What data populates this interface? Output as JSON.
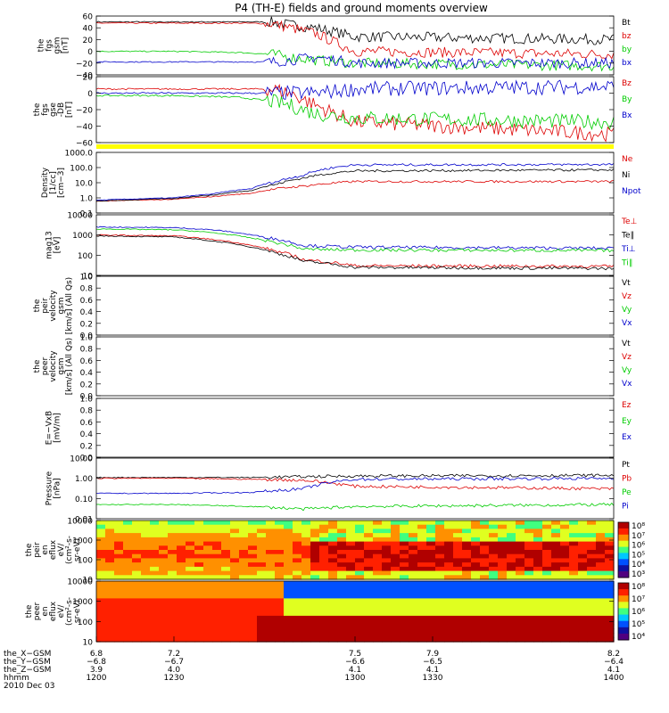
{
  "title": "P4 (TH-E) fields and ground moments overview",
  "colors": {
    "black": "#000000",
    "red": "#dd0000",
    "green": "#00cc00",
    "blue": "#0000cc",
    "yellow": "#ffff00"
  },
  "chart_data": [
    {
      "type": "line",
      "panel": "fgs_gsm",
      "ylabel": [
        "the",
        "fgs",
        "gsm",
        "[nT]"
      ],
      "ylim": [
        -40,
        60
      ],
      "ticks": [
        "60",
        "40",
        "20",
        "0",
        "−20",
        "−40"
      ],
      "series": [
        {
          "name": "Bt",
          "color": "#000000",
          "x": [
            1200,
            1230,
            1255,
            1268,
            1275,
            1285,
            1300,
            1400
          ],
          "y": [
            50,
            50,
            50,
            50,
            45,
            40,
            25,
            20
          ]
        },
        {
          "name": "bz",
          "color": "#dd0000",
          "x": [
            1200,
            1230,
            1255,
            1268,
            1275,
            1285,
            1300,
            1400
          ],
          "y": [
            48,
            48,
            48,
            47,
            40,
            30,
            0,
            -5
          ]
        },
        {
          "name": "by",
          "color": "#00cc00",
          "x": [
            1200,
            1230,
            1255,
            1268,
            1275,
            1285,
            1300,
            1400
          ],
          "y": [
            0,
            0,
            -2,
            -5,
            -10,
            -15,
            -20,
            -25
          ]
        },
        {
          "name": "bx",
          "color": "#0000cc",
          "x": [
            1200,
            1230,
            1255,
            1268,
            1275,
            1285,
            1300,
            1400
          ],
          "y": [
            -18,
            -18,
            -18,
            -18,
            -15,
            -10,
            -20,
            -20
          ]
        }
      ]
    },
    {
      "type": "line",
      "panel": "fgs_gse",
      "ylabel": [
        "the",
        "fgs",
        "gse",
        "-DB",
        "[nT]"
      ],
      "ylim": [
        -60,
        20
      ],
      "ticks": [
        "20",
        "0",
        "−20",
        "−40",
        "−60"
      ],
      "series": [
        {
          "name": "Bz",
          "color": "#dd0000",
          "x": [
            1200,
            1230,
            1255,
            1268,
            1275,
            1285,
            1300,
            1400
          ],
          "y": [
            5,
            5,
            5,
            5,
            0,
            -15,
            -35,
            -50
          ]
        },
        {
          "name": "By",
          "color": "#00cc00",
          "x": [
            1200,
            1230,
            1255,
            1268,
            1275,
            1285,
            1300,
            1400
          ],
          "y": [
            -3,
            -3,
            -5,
            -10,
            -15,
            -25,
            -30,
            -35
          ]
        },
        {
          "name": "Bx",
          "color": "#0000cc",
          "x": [
            1200,
            1230,
            1255,
            1268,
            1275,
            1285,
            1300,
            1400
          ],
          "y": [
            0,
            0,
            0,
            0,
            0,
            0,
            5,
            8
          ]
        }
      ]
    },
    {
      "type": "line",
      "panel": "density",
      "ylabel": [
        "Density",
        "[1/cc]",
        "[cm−3]"
      ],
      "scale": "log",
      "ylim": [
        0.1,
        1000
      ],
      "ticks": [
        "1000.0",
        "100.0",
        "10.0",
        "1.0",
        "0.1"
      ],
      "series": [
        {
          "name": "Ne",
          "color": "#dd0000",
          "x": [
            1200,
            1230,
            1245,
            1260,
            1270,
            1280,
            1300,
            1400
          ],
          "y": [
            0.6,
            0.8,
            1.2,
            2.0,
            4.0,
            6.0,
            12,
            12
          ]
        },
        {
          "name": "Ni",
          "color": "#000000",
          "x": [
            1200,
            1230,
            1245,
            1260,
            1270,
            1280,
            1300,
            1400
          ],
          "y": [
            0.6,
            0.9,
            1.5,
            3.0,
            8.0,
            20,
            60,
            70
          ]
        },
        {
          "name": "Npot",
          "color": "#0000cc",
          "x": [
            1200,
            1230,
            1245,
            1260,
            1270,
            1280,
            1300,
            1400
          ],
          "y": [
            0.7,
            1.0,
            1.8,
            4.0,
            12,
            30,
            150,
            160
          ]
        }
      ]
    },
    {
      "type": "line",
      "panel": "temperature",
      "ylabel": [
        "mag13",
        "[eV]"
      ],
      "scale": "log",
      "ylim": [
        10,
        10000
      ],
      "ticks": [
        "10000",
        "1000",
        "100",
        "10"
      ],
      "series": [
        {
          "name": "Te⊥",
          "color": "#dd0000",
          "x": [
            1200,
            1230,
            1245,
            1260,
            1270,
            1280,
            1300,
            1400
          ],
          "y": [
            1000,
            900,
            600,
            300,
            150,
            60,
            30,
            28
          ]
        },
        {
          "name": "Te∥",
          "color": "#000000",
          "x": [
            1200,
            1230,
            1245,
            1260,
            1270,
            1280,
            1300,
            1400
          ],
          "y": [
            900,
            800,
            500,
            250,
            120,
            50,
            25,
            22
          ]
        },
        {
          "name": "Ti⊥",
          "color": "#0000cc",
          "x": [
            1200,
            1230,
            1245,
            1260,
            1270,
            1280,
            1300,
            1400
          ],
          "y": [
            2500,
            2300,
            1800,
            1000,
            600,
            300,
            250,
            220
          ]
        },
        {
          "name": "Ti∥",
          "color": "#00cc00",
          "x": [
            1200,
            1230,
            1245,
            1260,
            1270,
            1280,
            1300,
            1400
          ],
          "y": [
            2000,
            1800,
            1300,
            700,
            400,
            200,
            180,
            170
          ]
        }
      ]
    },
    {
      "type": "line",
      "panel": "velocity_gsm",
      "ylabel": [
        "the",
        "peir",
        "velocity",
        "gsm",
        "[km/s] (All Qs)"
      ],
      "ylim": [
        0,
        1
      ],
      "ticks": [
        "1.0",
        "0.8",
        "0.6",
        "0.4",
        "0.2",
        "0.0"
      ],
      "series": [
        {
          "name": "Vt",
          "color": "#000000"
        },
        {
          "name": "Vz",
          "color": "#dd0000"
        },
        {
          "name": "Vy",
          "color": "#00cc00"
        },
        {
          "name": "Vx",
          "color": "#0000cc"
        }
      ]
    },
    {
      "type": "line",
      "panel": "velocity_gse",
      "ylabel": [
        "the",
        "peer",
        "velocity",
        "gsm",
        "[km/s] (All Qs)"
      ],
      "ylim": [
        0,
        1
      ],
      "ticks": [
        "1.0",
        "0.8",
        "0.6",
        "0.4",
        "0.2",
        "0.0"
      ],
      "series": [
        {
          "name": "Vt",
          "color": "#000000"
        },
        {
          "name": "Vz",
          "color": "#dd0000"
        },
        {
          "name": "Vy",
          "color": "#00cc00"
        },
        {
          "name": "Vx",
          "color": "#0000cc"
        }
      ]
    },
    {
      "type": "line",
      "panel": "efield",
      "ylabel": [
        "E=−VxB",
        "[mV/m]"
      ],
      "ylim": [
        0,
        1
      ],
      "ticks": [
        "1.0",
        "0.8",
        "0.6",
        "0.4",
        "0.2",
        "0.0"
      ],
      "series": [
        {
          "name": "Ez",
          "color": "#dd0000"
        },
        {
          "name": "Ey",
          "color": "#00cc00"
        },
        {
          "name": "Ex",
          "color": "#0000cc"
        }
      ]
    },
    {
      "type": "line",
      "panel": "pressure",
      "ylabel": [
        "Pressure",
        "[nPa]"
      ],
      "scale": "log",
      "ylim": [
        0.01,
        10
      ],
      "ticks": [
        "10.00",
        "1.00",
        "0.10",
        "0.01"
      ],
      "series": [
        {
          "name": "Pt",
          "color": "#000000",
          "x": [
            1200,
            1230,
            1260,
            1280,
            1300,
            1400
          ],
          "y": [
            1.1,
            1.1,
            1.1,
            1.2,
            1.3,
            1.4
          ]
        },
        {
          "name": "Pb",
          "color": "#dd0000",
          "x": [
            1200,
            1230,
            1260,
            1280,
            1300,
            1400
          ],
          "y": [
            1.0,
            1.0,
            0.9,
            0.8,
            0.4,
            0.3
          ]
        },
        {
          "name": "Pe",
          "color": "#00cc00",
          "x": [
            1200,
            1230,
            1260,
            1280,
            1300,
            1400
          ],
          "y": [
            0.05,
            0.05,
            0.04,
            0.03,
            0.04,
            0.05
          ]
        },
        {
          "name": "Pi",
          "color": "#0000cc",
          "x": [
            1200,
            1230,
            1260,
            1280,
            1300,
            1400
          ],
          "y": [
            0.18,
            0.18,
            0.2,
            0.3,
            0.9,
            1.0
          ]
        }
      ]
    },
    {
      "type": "heatmap",
      "panel": "peir_spectrogram",
      "ylabel": [
        "the",
        "peir",
        "en",
        "eflux",
        "eV/",
        "(cm²-s-",
        "sr-eV)"
      ],
      "scale": "log",
      "ylim": [
        10,
        10000
      ],
      "ticks": [
        "10000",
        "1000",
        "100",
        "10"
      ],
      "colorbar_ticks": [
        "10⁸",
        "10⁷",
        "10⁶",
        "10⁵",
        "10⁴",
        "10³"
      ]
    },
    {
      "type": "heatmap",
      "panel": "peer_spectrogram",
      "ylabel": [
        "the",
        "peer",
        "en",
        "eflux",
        "eV/",
        "(cm²-s-",
        "sr-eV)"
      ],
      "scale": "log",
      "ylim": [
        10,
        10000
      ],
      "ticks": [
        "10000",
        "1000",
        "100",
        "10"
      ],
      "colorbar_ticks": [
        "10⁸",
        "10⁷",
        "10⁶",
        "10⁵",
        "10⁴"
      ]
    }
  ],
  "axis": {
    "row_labels": [
      "the_X−GSM",
      "the_Y−GSM",
      "the_Z−GSM",
      "hhmm",
      "2010 Dec 03"
    ],
    "ticks": [
      {
        "x": "6.8",
        "y": "−6.8",
        "z": "3.9",
        "t": "1200"
      },
      {
        "x": "7.2",
        "y": "−6.7",
        "z": "4.0",
        "t": "1230"
      },
      {
        "x": "7.5",
        "y": "−6.6",
        "z": "4.1",
        "t": "1300"
      },
      {
        "x": "7.9",
        "y": "−6.5",
        "z": "4.1",
        "t": "1330"
      },
      {
        "x": "8.2",
        "y": "−6.4",
        "z": "4.1",
        "t": "1400"
      }
    ]
  }
}
